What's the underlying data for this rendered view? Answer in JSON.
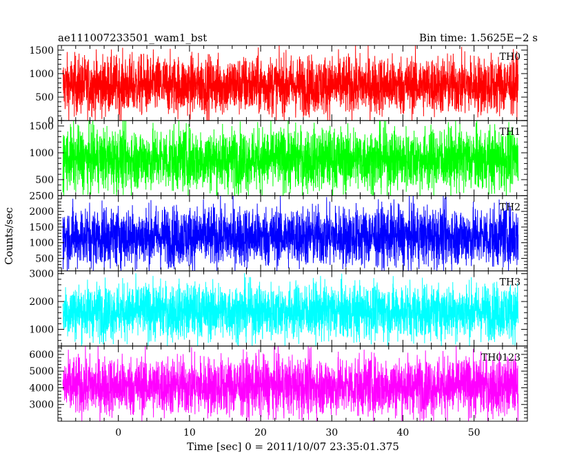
{
  "header": {
    "left": "ae111007233501_wam1_bst",
    "right": "Bin time: 1.5625E−2 s"
  },
  "chart_data": {
    "type": "line",
    "xlabel": "Time [sec] 0 = 2011/10/07 23:35:01.375",
    "ylabel": "Counts/sec",
    "xlim": [
      -8.5,
      57.5
    ],
    "data_x_range": [
      -7.8,
      56.2
    ],
    "xticks": [
      0,
      10,
      20,
      30,
      40,
      50
    ],
    "panels": [
      {
        "name": "TH0",
        "color": "#ff0000",
        "ylim": [
          0,
          1600
        ],
        "yticks": [
          0,
          500,
          1000,
          1500
        ],
        "typical_range": [
          150,
          1450
        ],
        "mean": 750
      },
      {
        "name": "TH1",
        "color": "#00ff00",
        "ylim": [
          200,
          1600
        ],
        "yticks": [
          500,
          1000,
          1500
        ],
        "typical_range": [
          280,
          1500
        ],
        "mean": 880
      },
      {
        "name": "TH2",
        "color": "#0000ff",
        "ylim": [
          100,
          2500
        ],
        "yticks": [
          500,
          1000,
          1500,
          2000,
          2500
        ],
        "typical_range": [
          300,
          2300
        ],
        "mean": 1200
      },
      {
        "name": "TH3",
        "color": "#00ffff",
        "ylim": [
          400,
          3100
        ],
        "yticks": [
          1000,
          2000,
          3000
        ],
        "typical_range": [
          700,
          2800
        ],
        "mean": 1650
      },
      {
        "name": "TH0123",
        "color": "#ff00ff",
        "ylim": [
          2000,
          6500
        ],
        "yticks": [
          3000,
          4000,
          5000,
          6000
        ],
        "typical_range": [
          2500,
          6200
        ],
        "mean": 4100
      }
    ]
  }
}
